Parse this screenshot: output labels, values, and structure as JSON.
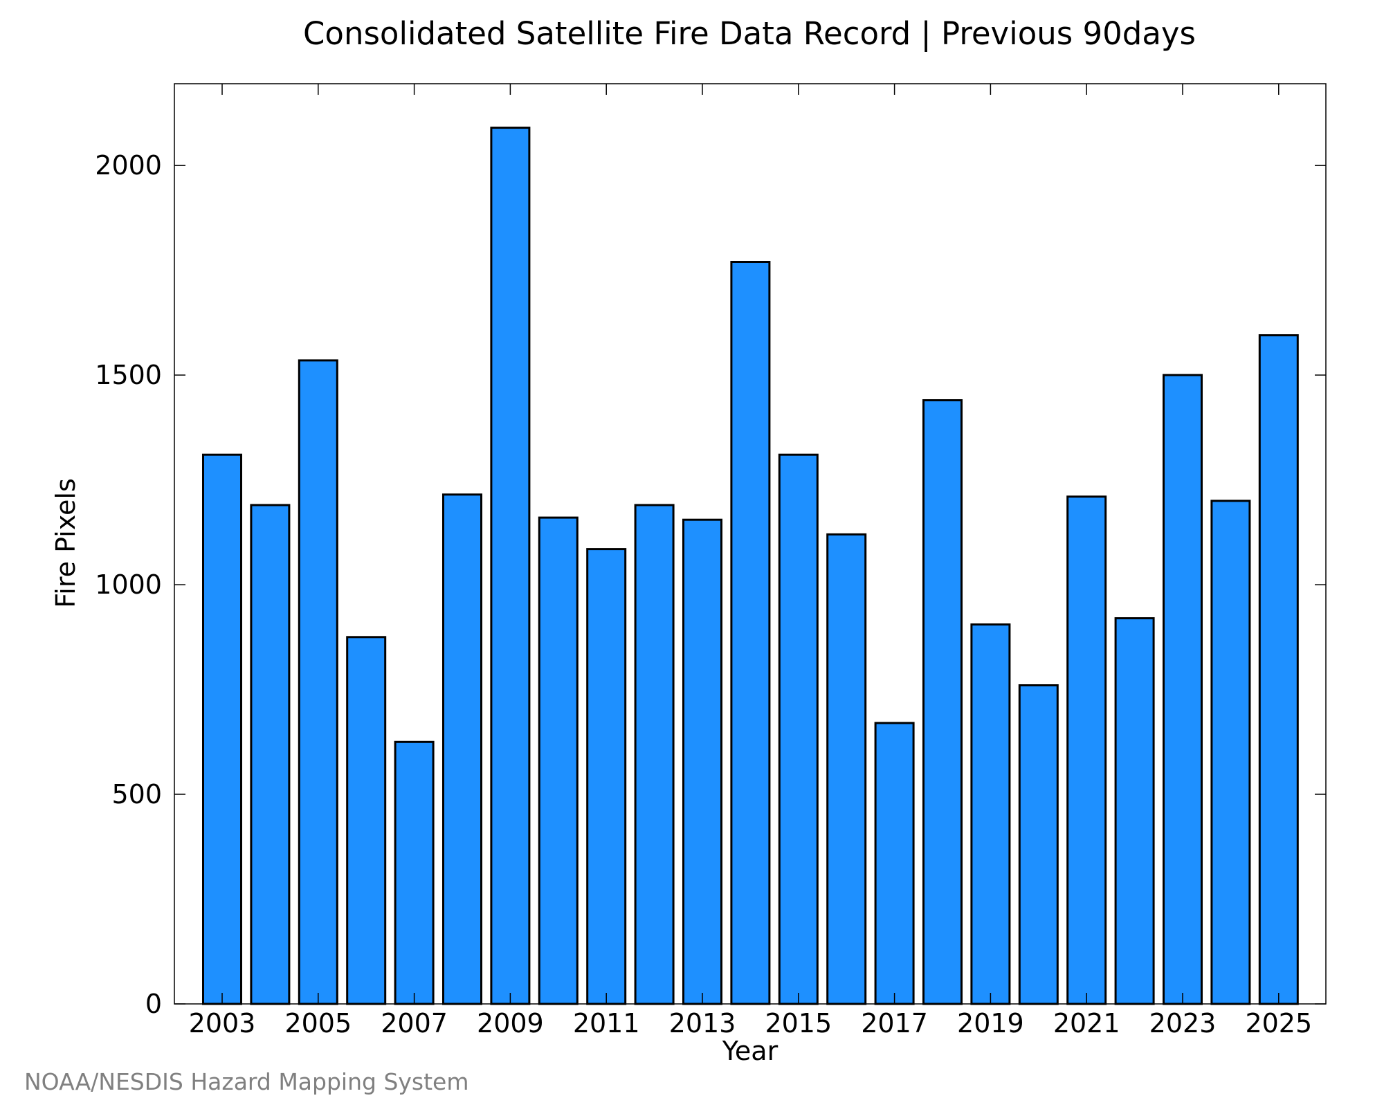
{
  "chart_data": {
    "type": "bar",
    "title": "Consolidated Satellite Fire Data Record | Previous 90days",
    "xlabel": "Year",
    "ylabel": "Fire Pixels",
    "categories": [
      "2003",
      "2004",
      "2005",
      "2006",
      "2007",
      "2008",
      "2009",
      "2010",
      "2011",
      "2012",
      "2013",
      "2014",
      "2015",
      "2016",
      "2017",
      "2018",
      "2019",
      "2020",
      "2021",
      "2022",
      "2023",
      "2024",
      "2025"
    ],
    "values": [
      1310,
      1190,
      1535,
      875,
      625,
      1215,
      2090,
      1160,
      1085,
      1190,
      1155,
      1770,
      1310,
      1120,
      670,
      1440,
      905,
      760,
      1210,
      920,
      1500,
      1200,
      1595
    ],
    "xtick_labels": [
      "2003",
      "2005",
      "2007",
      "2009",
      "2011",
      "2013",
      "2015",
      "2017",
      "2019",
      "2021",
      "2023",
      "2025"
    ],
    "yticks": [
      0,
      500,
      1000,
      1500,
      2000
    ],
    "ylim": [
      0,
      2195
    ],
    "grid": false,
    "bar_color": "#1e90ff",
    "edge_color": "#000000"
  },
  "credit": "NOAA/NESDIS Hazard Mapping System"
}
